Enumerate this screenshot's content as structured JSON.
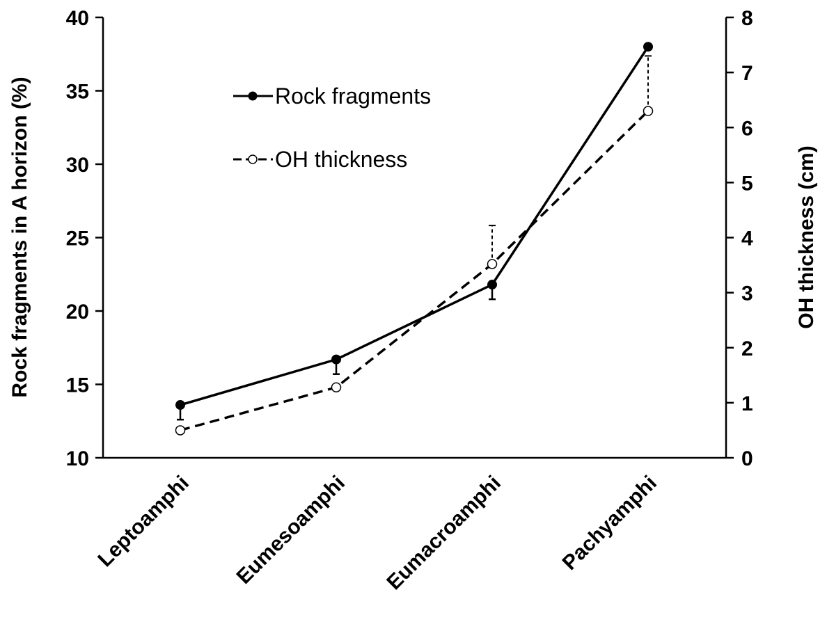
{
  "chart_data": {
    "type": "line",
    "categories": [
      "Leptoamphi",
      "Eumesoamphi",
      "Eumacroamphi",
      "Pachyamphi"
    ],
    "series": [
      {
        "name": "Rock fragments",
        "axis": "left",
        "values": [
          13.6,
          16.7,
          21.8,
          38.0
        ],
        "error_low": [
          1.0,
          1.0,
          1.0,
          0.0
        ],
        "error_high": [
          0.0,
          0.0,
          0.0,
          0.0
        ],
        "line_style": "solid",
        "marker": "filled-circle",
        "color": "#000000"
      },
      {
        "name": "OH thickness",
        "axis": "right",
        "values": [
          0.5,
          1.28,
          3.52,
          6.3
        ],
        "error_low": [
          0.0,
          0.0,
          0.0,
          0.0
        ],
        "error_high": [
          0.0,
          0.0,
          0.7,
          1.0
        ],
        "line_style": "dashed",
        "marker": "open-circle",
        "color": "#000000"
      }
    ],
    "ylabel": "Rock fragments in A horizon (%)",
    "ylim": [
      10,
      40
    ],
    "yticks": [
      "10",
      "15",
      "20",
      "25",
      "30",
      "35",
      "40"
    ],
    "y2label": "OH thickness (cm)",
    "y2lim": [
      0,
      8
    ],
    "y2ticks": [
      "0",
      "1",
      "2",
      "3",
      "4",
      "5",
      "6",
      "7",
      "8"
    ],
    "grid": false,
    "legend": "upper-left-inside"
  }
}
